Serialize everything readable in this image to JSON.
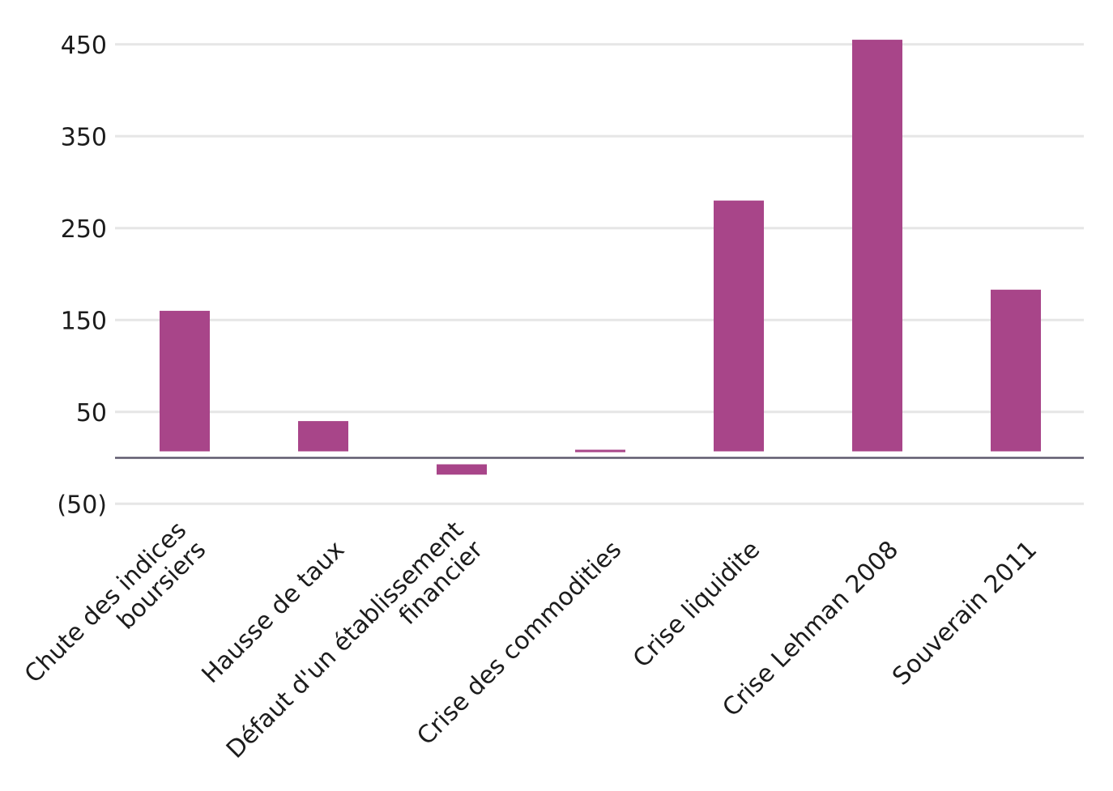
{
  "chart_data": {
    "type": "bar",
    "categories": [
      [
        "Chute des indices",
        "boursiers"
      ],
      [
        "Hausse de taux"
      ],
      [
        "Défaut d'un établissement",
        "financier"
      ],
      [
        "Crise des commodities"
      ],
      [
        "Crise liquidite"
      ],
      [
        "Crise Lehman 2008"
      ],
      [
        "Souverain 2011"
      ]
    ],
    "values": [
      160,
      40,
      -13,
      8,
      280,
      455,
      183
    ],
    "y_ticks": [
      -50,
      50,
      150,
      250,
      350,
      450
    ],
    "y_tick_labels": [
      "(50)",
      "50",
      "150",
      "250",
      "350",
      "450"
    ],
    "ylim": [
      -55,
      460
    ],
    "bar_color": "#a84589",
    "grid": true,
    "legend": "none"
  }
}
